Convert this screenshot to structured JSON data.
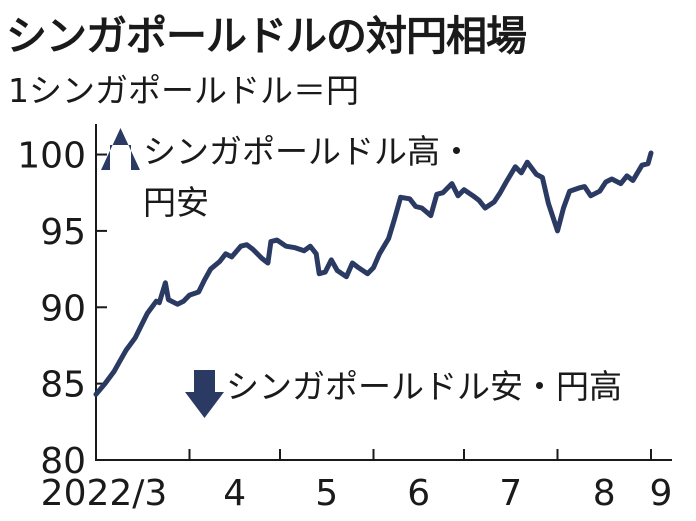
{
  "chart_data": {
    "type": "line",
    "title": "シンガポールドルの対円相場",
    "subtitle": "1シンガポールドル＝円",
    "ylim": [
      80,
      102
    ],
    "yticks": [
      80,
      85,
      90,
      95,
      100
    ],
    "xticks": [
      "2022/3",
      "4",
      "5",
      "6",
      "7",
      "8",
      "9"
    ],
    "annotations": {
      "up_line1": "シンガポールドル高・",
      "up_line2": "円安",
      "down": "シンガポールドル安・円高"
    },
    "colors": {
      "line": "#2a3a62",
      "arrow": "#2a3a62",
      "axis": "#1a1a1a"
    },
    "series": [
      {
        "points": [
          [
            "2022-03-01",
            84.3
          ],
          [
            "2022-03-04",
            85.0
          ],
          [
            "2022-03-07",
            85.8
          ],
          [
            "2022-03-09",
            86.5
          ],
          [
            "2022-03-11",
            87.2
          ],
          [
            "2022-03-14",
            88.0
          ],
          [
            "2022-03-16",
            88.8
          ],
          [
            "2022-03-18",
            89.6
          ],
          [
            "2022-03-21",
            90.4
          ],
          [
            "2022-03-22",
            90.3
          ],
          [
            "2022-03-24",
            91.6
          ],
          [
            "2022-03-25",
            90.5
          ],
          [
            "2022-03-28",
            90.2
          ],
          [
            "2022-03-30",
            90.4
          ],
          [
            "2022-04-01",
            90.8
          ],
          [
            "2022-04-04",
            91.0
          ],
          [
            "2022-04-06",
            91.8
          ],
          [
            "2022-04-08",
            92.5
          ],
          [
            "2022-04-11",
            93.0
          ],
          [
            "2022-04-13",
            93.5
          ],
          [
            "2022-04-15",
            93.3
          ],
          [
            "2022-04-18",
            94.0
          ],
          [
            "2022-04-20",
            94.1
          ],
          [
            "2022-04-22",
            93.8
          ],
          [
            "2022-04-25",
            93.2
          ],
          [
            "2022-04-27",
            92.9
          ],
          [
            "2022-04-28",
            94.3
          ],
          [
            "2022-04-30",
            94.4
          ],
          [
            "2022-05-03",
            94.0
          ],
          [
            "2022-05-06",
            93.9
          ],
          [
            "2022-05-09",
            93.7
          ],
          [
            "2022-05-11",
            94.0
          ],
          [
            "2022-05-13",
            93.5
          ],
          [
            "2022-05-14",
            92.2
          ],
          [
            "2022-05-16",
            92.3
          ],
          [
            "2022-05-18",
            93.1
          ],
          [
            "2022-05-20",
            92.4
          ],
          [
            "2022-05-23",
            92.0
          ],
          [
            "2022-05-25",
            92.9
          ],
          [
            "2022-05-27",
            92.6
          ],
          [
            "2022-05-30",
            92.2
          ],
          [
            "2022-06-01",
            92.6
          ],
          [
            "2022-06-03",
            93.5
          ],
          [
            "2022-06-06",
            94.5
          ],
          [
            "2022-06-08",
            95.8
          ],
          [
            "2022-06-10",
            97.2
          ],
          [
            "2022-06-13",
            97.1
          ],
          [
            "2022-06-15",
            96.6
          ],
          [
            "2022-06-17",
            96.5
          ],
          [
            "2022-06-20",
            96.0
          ],
          [
            "2022-06-22",
            97.4
          ],
          [
            "2022-06-24",
            97.5
          ],
          [
            "2022-06-27",
            98.1
          ],
          [
            "2022-06-29",
            97.3
          ],
          [
            "2022-07-01",
            97.7
          ],
          [
            "2022-07-04",
            97.3
          ],
          [
            "2022-07-06",
            97.0
          ],
          [
            "2022-07-08",
            96.5
          ],
          [
            "2022-07-11",
            96.9
          ],
          [
            "2022-07-13",
            97.5
          ],
          [
            "2022-07-15",
            98.2
          ],
          [
            "2022-07-18",
            99.2
          ],
          [
            "2022-07-20",
            98.8
          ],
          [
            "2022-07-22",
            99.5
          ],
          [
            "2022-07-25",
            98.7
          ],
          [
            "2022-07-27",
            98.5
          ],
          [
            "2022-07-29",
            96.8
          ],
          [
            "2022-08-01",
            95.0
          ],
          [
            "2022-08-03",
            96.5
          ],
          [
            "2022-08-05",
            97.6
          ],
          [
            "2022-08-08",
            97.8
          ],
          [
            "2022-08-10",
            97.9
          ],
          [
            "2022-08-12",
            97.3
          ],
          [
            "2022-08-15",
            97.6
          ],
          [
            "2022-08-17",
            98.2
          ],
          [
            "2022-08-19",
            98.4
          ],
          [
            "2022-08-22",
            98.1
          ],
          [
            "2022-08-24",
            98.6
          ],
          [
            "2022-08-26",
            98.3
          ],
          [
            "2022-08-29",
            99.3
          ],
          [
            "2022-08-31",
            99.4
          ],
          [
            "2022-09-01",
            100.1
          ]
        ]
      }
    ]
  }
}
